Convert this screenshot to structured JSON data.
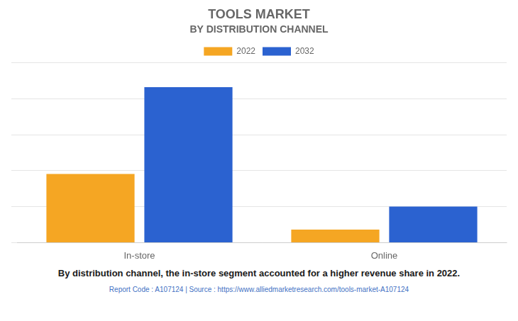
{
  "chart_data": {
    "type": "bar",
    "title": "TOOLS MARKET",
    "subtitle": "BY DISTRIBUTION CHANNEL",
    "annotations": [
      "By distribution channel, the in-store segment accounted for a higher revenue share in 2022.",
      "Report Code : A107124  |  Source : https://www.alliedmarketresearch.com/tools-market-A107124"
    ],
    "categories": [
      "In-store",
      "Online"
    ],
    "series": [
      {
        "name": "2022",
        "color": "#F5A623",
        "values": [
          42,
          8
        ]
      },
      {
        "name": "2032",
        "color": "#2B62D0",
        "values": [
          95,
          22
        ]
      }
    ],
    "ylim": [
      0,
      110
    ],
    "yticks": [
      0,
      22,
      44,
      66,
      88,
      110
    ],
    "grid": true,
    "legend": "top",
    "tick_labels": "x"
  }
}
